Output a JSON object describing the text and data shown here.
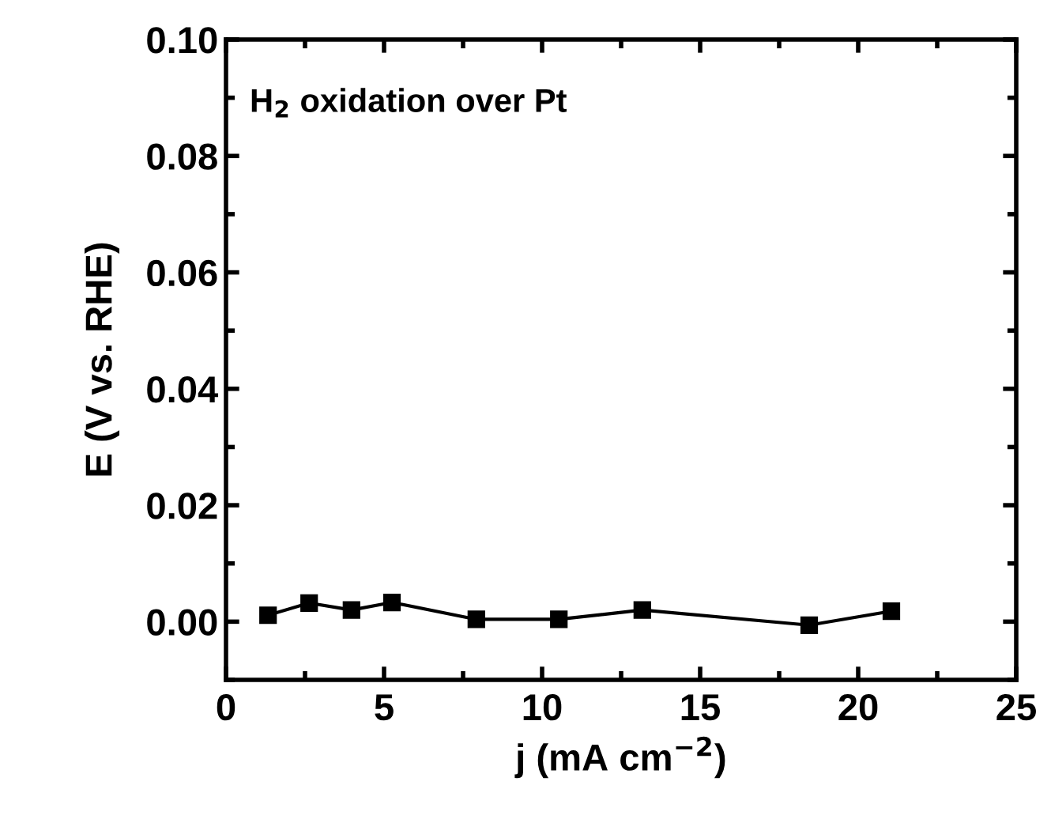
{
  "chart_data": {
    "type": "line",
    "xlabel": "j (mA cm$^{−2}$)",
    "ylabel": "E (V vs. RHE)",
    "annotations": [
      "H$_{2}$ oxidation over Pt"
    ],
    "x": [
      1.33,
      2.63,
      3.97,
      5.25,
      7.92,
      10.53,
      13.17,
      18.45,
      21.05
    ],
    "series": [
      {
        "color": "#000000",
        "values": [
          0.0011,
          0.0032,
          0.002,
          0.0033,
          0.0004,
          0.0004,
          0.002,
          -0.0006,
          0.0018
        ]
      }
    ],
    "xlim": [
      0,
      25
    ],
    "xticks": [
      0,
      5,
      10,
      15,
      20,
      25
    ],
    "ylim": [
      -0.01,
      0.1
    ],
    "yticks": [
      {
        "value": 0,
        "label": "0.00"
      },
      {
        "value": 0.02,
        "label": "0.02"
      },
      {
        "value": 0.04,
        "label": "0.04"
      },
      {
        "value": 0.06,
        "label": "0.06"
      },
      {
        "value": 0.08,
        "label": "0.08"
      },
      {
        "value": 0.1,
        "label": "0.10"
      }
    ],
    "marker": "square",
    "line_style": "solid",
    "grid": false,
    "legend": false
  }
}
